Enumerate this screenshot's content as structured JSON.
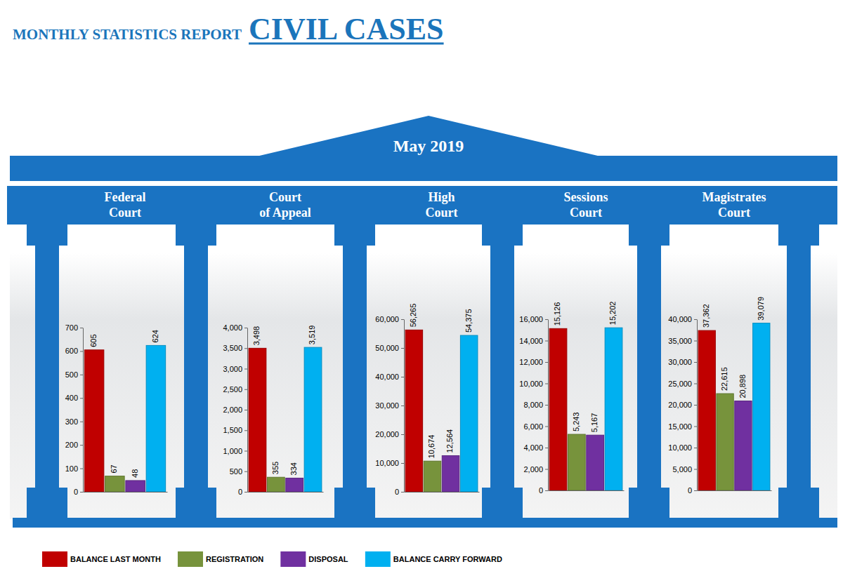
{
  "header": {
    "report": "MONTHLY STATISTICS REPORT",
    "title": "CIVIL CASES",
    "period": "May 2019"
  },
  "key": [
    {
      "name": "BALANCE LAST MONTH",
      "color": "#c00000"
    },
    {
      "name": "REGISTRATION",
      "color": "#77933c"
    },
    {
      "name": "DISPOSAL",
      "color": "#7030a0"
    },
    {
      "name": "BALANCE CARRY FORWARD",
      "color": "#00b0f0"
    }
  ],
  "chart_data": [
    {
      "type": "bar",
      "title": "Federal Court",
      "categories": [
        null,
        null,
        null,
        null
      ],
      "values": [
        605,
        67,
        48,
        624
      ],
      "value_labels": [
        "605",
        "67",
        "48",
        "624"
      ],
      "colors": [
        "#c00000",
        "#77933c",
        "#7030a0",
        "#00b0f0"
      ],
      "ylim": [
        0,
        700
      ],
      "yticks": [
        0,
        100,
        200,
        300,
        400,
        500,
        600,
        700
      ],
      "grid": false,
      "data_labels": true,
      "tick_labels": "y"
    },
    {
      "type": "bar",
      "title": "Court of Appeal",
      "categories": [
        null,
        null,
        null,
        null
      ],
      "values": [
        3498,
        355,
        334,
        3519
      ],
      "value_labels": [
        "3,498",
        "355",
        "334",
        "3,519"
      ],
      "colors": [
        "#c00000",
        "#77933c",
        "#7030a0",
        "#00b0f0"
      ],
      "ylim": [
        0,
        4000
      ],
      "yticks": [
        0,
        500,
        {
          "value": 1000,
          "label": "1,000"
        },
        {
          "value": 1500,
          "label": "1,500"
        },
        {
          "value": 2000,
          "label": "2,000"
        },
        {
          "value": 2500,
          "label": "2,500"
        },
        {
          "value": 3000,
          "label": "3,000"
        },
        {
          "value": 3500,
          "label": "3,500"
        },
        {
          "value": 4000,
          "label": "4,000"
        }
      ],
      "grid": false,
      "data_labels": true,
      "tick_labels": "y"
    },
    {
      "type": "bar",
      "title": "High Court",
      "categories": [
        null,
        null,
        null,
        null
      ],
      "values": [
        56265,
        10674,
        12564,
        54375
      ],
      "value_labels": [
        "56,265",
        "10,674",
        "12,564",
        "54,375"
      ],
      "colors": [
        "#c00000",
        "#77933c",
        "#7030a0",
        "#00b0f0"
      ],
      "ylim": [
        0,
        60000
      ],
      "yticks": [
        0,
        {
          "value": 10000,
          "label": "10,000"
        },
        {
          "value": 20000,
          "label": "20,000"
        },
        {
          "value": 30000,
          "label": "30,000"
        },
        {
          "value": 40000,
          "label": "40,000"
        },
        {
          "value": 50000,
          "label": "50,000"
        },
        {
          "value": 60000,
          "label": "60,000"
        }
      ],
      "grid": false,
      "data_labels": true,
      "tick_labels": "y"
    },
    {
      "type": "bar",
      "title": "Sessions Court",
      "categories": [
        null,
        null,
        null,
        null
      ],
      "values": [
        15126,
        5243,
        5167,
        15202
      ],
      "value_labels": [
        "15,126",
        "5,243",
        "5,167",
        "15,202"
      ],
      "colors": [
        "#c00000",
        "#77933c",
        "#7030a0",
        "#00b0f0"
      ],
      "ylim": [
        0,
        16000
      ],
      "yticks": [
        0,
        {
          "value": 2000,
          "label": "2,000"
        },
        {
          "value": 4000,
          "label": "4,000"
        },
        {
          "value": 6000,
          "label": "6,000"
        },
        {
          "value": 8000,
          "label": "8,000"
        },
        {
          "value": 10000,
          "label": "10,000"
        },
        {
          "value": 12000,
          "label": "12,000"
        },
        {
          "value": 14000,
          "label": "14,000"
        },
        {
          "value": 16000,
          "label": "16,000"
        }
      ],
      "grid": false,
      "data_labels": true,
      "tick_labels": "y"
    },
    {
      "type": "bar",
      "title": "Magistrates Court",
      "categories": [
        null,
        null,
        null,
        null
      ],
      "values": [
        37362,
        22615,
        20898,
        39079
      ],
      "value_labels": [
        "37,362",
        "22,615",
        "20,898",
        "39,079"
      ],
      "colors": [
        "#c00000",
        "#77933c",
        "#7030a0",
        "#00b0f0"
      ],
      "ylim": [
        0,
        40000
      ],
      "yticks": [
        0,
        {
          "value": 5000,
          "label": "5,000"
        },
        {
          "value": 10000,
          "label": "10,000"
        },
        {
          "value": 15000,
          "label": "15,000"
        },
        {
          "value": 20000,
          "label": "20,000"
        },
        {
          "value": 25000,
          "label": "25,000"
        },
        {
          "value": 30000,
          "label": "30,000"
        },
        {
          "value": 35000,
          "label": "35,000"
        },
        {
          "value": 40000,
          "label": "40,000"
        }
      ],
      "grid": false,
      "data_labels": true,
      "tick_labels": "y"
    }
  ]
}
